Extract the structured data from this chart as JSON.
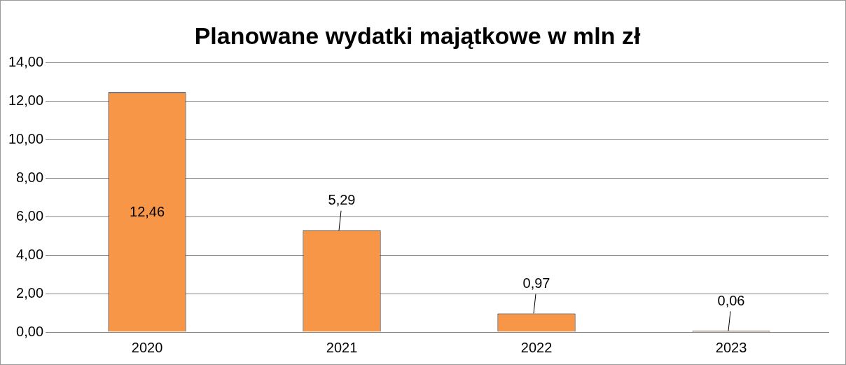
{
  "chart_data": {
    "type": "bar",
    "title": "Planowane wydatki majątkowe w mln zł",
    "categories": [
      "2020",
      "2021",
      "2022",
      "2023"
    ],
    "values": [
      12.46,
      5.29,
      0.97,
      0.06
    ],
    "value_labels": [
      "12,46",
      "5,29",
      "0,97",
      "0,06"
    ],
    "color": "#f79646",
    "ylim": [
      0,
      14
    ],
    "yticks": [
      {
        "value": 0,
        "label": "0,00"
      },
      {
        "value": 2,
        "label": "2,00"
      },
      {
        "value": 4,
        "label": "4,00"
      },
      {
        "value": 6,
        "label": "6,00"
      },
      {
        "value": 8,
        "label": "8,00"
      },
      {
        "value": 10,
        "label": "10,00"
      },
      {
        "value": 12,
        "label": "12,00"
      },
      {
        "value": 14,
        "label": "14,00"
      }
    ],
    "grid": "y",
    "legend": false
  }
}
